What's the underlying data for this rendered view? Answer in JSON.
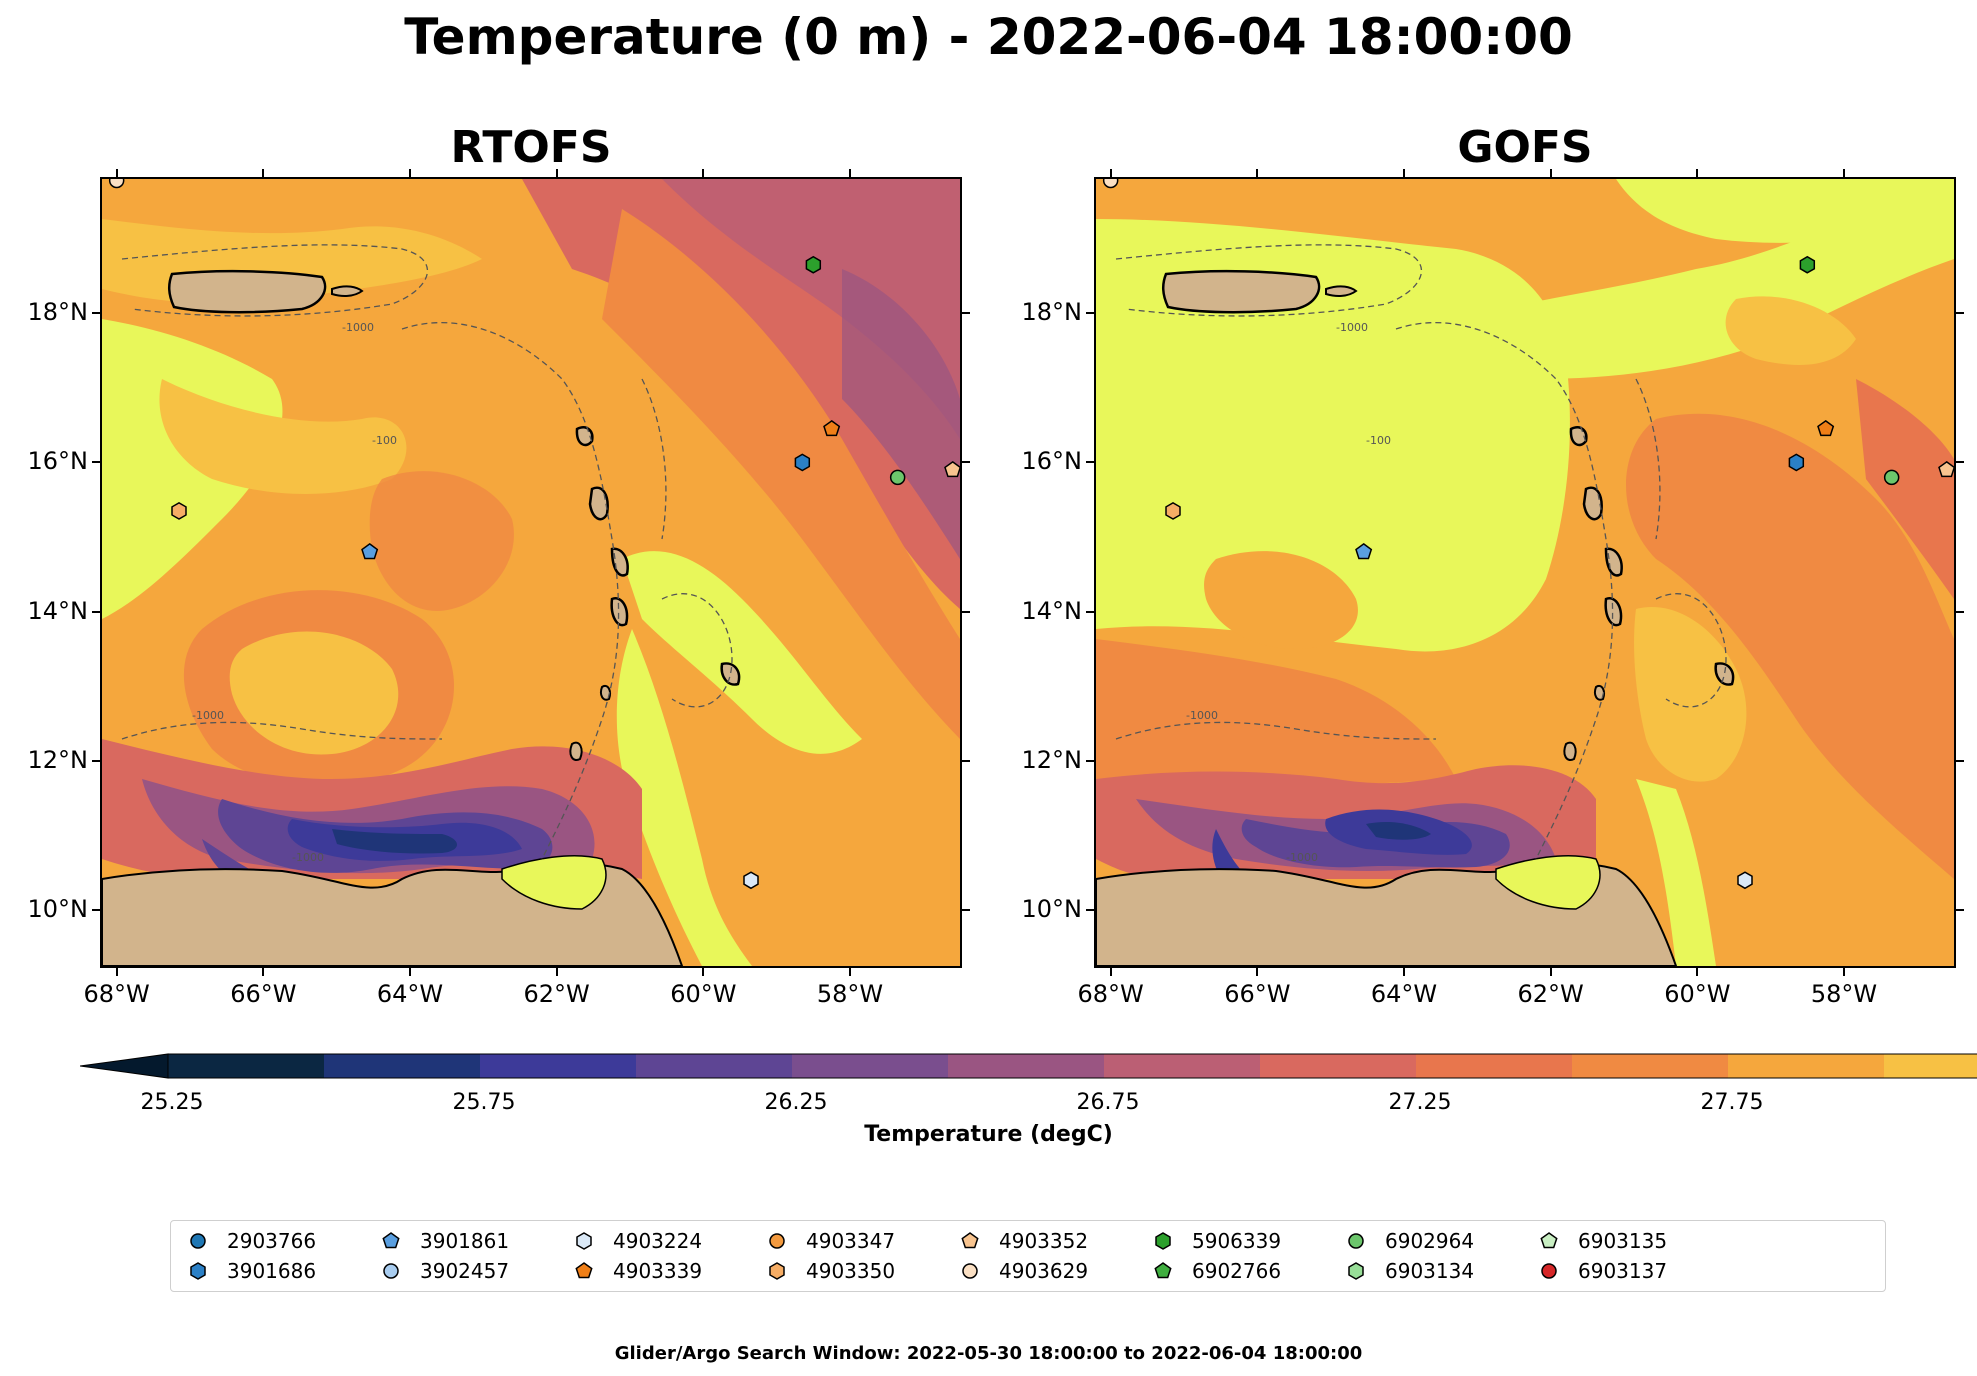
{
  "title": "Temperature (0 m) - 2022-06-04 18:00:00",
  "panels": [
    {
      "name": "rtofs",
      "title": "RTOFS"
    },
    {
      "name": "gofs",
      "title": "GOFS"
    }
  ],
  "map": {
    "lon_range": [
      -68.2,
      -56.5
    ],
    "lat_range": [
      9.25,
      19.8
    ],
    "lat_ticks": [
      {
        "value": 18,
        "label": "18°N"
      },
      {
        "value": 16,
        "label": "16°N"
      },
      {
        "value": 14,
        "label": "14°N"
      },
      {
        "value": 12,
        "label": "12°N"
      },
      {
        "value": 10,
        "label": "10°N"
      }
    ],
    "lon_ticks": [
      {
        "value": -68,
        "label": "68°W"
      },
      {
        "value": -66,
        "label": "66°W"
      },
      {
        "value": -64,
        "label": "64°W"
      },
      {
        "value": -62,
        "label": "62°W"
      },
      {
        "value": -60,
        "label": "60°W"
      },
      {
        "value": -58,
        "label": "58°W"
      }
    ],
    "contour_label": "-1000",
    "contour_label_short": "-100",
    "colors": {
      "land": "#d2b48c",
      "coast": "#000000",
      "water_body": "#9ec5e8",
      "contour": "#555555"
    }
  },
  "colorbar": {
    "label": "Temperature (degC)",
    "ticks": [
      "25.25",
      "25.75",
      "26.25",
      "26.75",
      "27.25",
      "27.75"
    ],
    "colors": [
      "#0b2742",
      "#1f3578",
      "#3d3a99",
      "#5e4594",
      "#7a4e8e",
      "#9a5582",
      "#bb5f74",
      "#d9695f",
      "#e8764d",
      "#f08a42",
      "#f5a73d",
      "#f7c144"
    ],
    "under_color": "#04192d",
    "over_color": "#e8f75a"
  },
  "legend": {
    "items": [
      {
        "label": "2903766",
        "marker": "circle",
        "color": "#1f77b4"
      },
      {
        "label": "3901686",
        "marker": "hexagon",
        "color": "#2b80c6"
      },
      {
        "label": "3901861",
        "marker": "pentagon",
        "color": "#5a9fe0"
      },
      {
        "label": "3902457",
        "marker": "circle",
        "color": "#a9cdf0"
      },
      {
        "label": "4903224",
        "marker": "hexagon",
        "color": "#dbe9f7"
      },
      {
        "label": "4903339",
        "marker": "pentagon",
        "color": "#f07f17"
      },
      {
        "label": "4903347",
        "marker": "circle",
        "color": "#f39a3f"
      },
      {
        "label": "4903350",
        "marker": "hexagon",
        "color": "#f6ad65"
      },
      {
        "label": "4903352",
        "marker": "pentagon",
        "color": "#f8c48f"
      },
      {
        "label": "4903629",
        "marker": "circle",
        "color": "#fbe0c4"
      },
      {
        "label": "5906339",
        "marker": "hexagon",
        "color": "#2ca02c"
      },
      {
        "label": "6902766",
        "marker": "pentagon",
        "color": "#3fae3f"
      },
      {
        "label": "6902964",
        "marker": "circle",
        "color": "#6cc66c"
      },
      {
        "label": "6903134",
        "marker": "hexagon",
        "color": "#98de98"
      },
      {
        "label": "6903135",
        "marker": "pentagon",
        "color": "#c9efc3"
      },
      {
        "label": "6903137",
        "marker": "circle",
        "color": "#d62728"
      }
    ]
  },
  "floats_on_map": [
    {
      "id": "4903629",
      "lon": -68.0,
      "lat": 19.78
    },
    {
      "id": "5906339",
      "lon": -58.5,
      "lat": 18.65
    },
    {
      "id": "4903339",
      "lon": -58.25,
      "lat": 16.45
    },
    {
      "id": "3901686",
      "lon": -58.65,
      "lat": 16.0
    },
    {
      "id": "6902964",
      "lon": -57.35,
      "lat": 15.8
    },
    {
      "id": "4903352",
      "lon": -56.6,
      "lat": 15.9
    },
    {
      "id": "4903350",
      "lon": -67.15,
      "lat": 15.35
    },
    {
      "id": "3901861",
      "lon": -64.55,
      "lat": 14.8
    },
    {
      "id": "4903224",
      "lon": -59.35,
      "lat": 10.4
    }
  ],
  "footer": "Glider/Argo Search Window: 2022-05-30 18:00:00 to 2022-06-04 18:00:00"
}
